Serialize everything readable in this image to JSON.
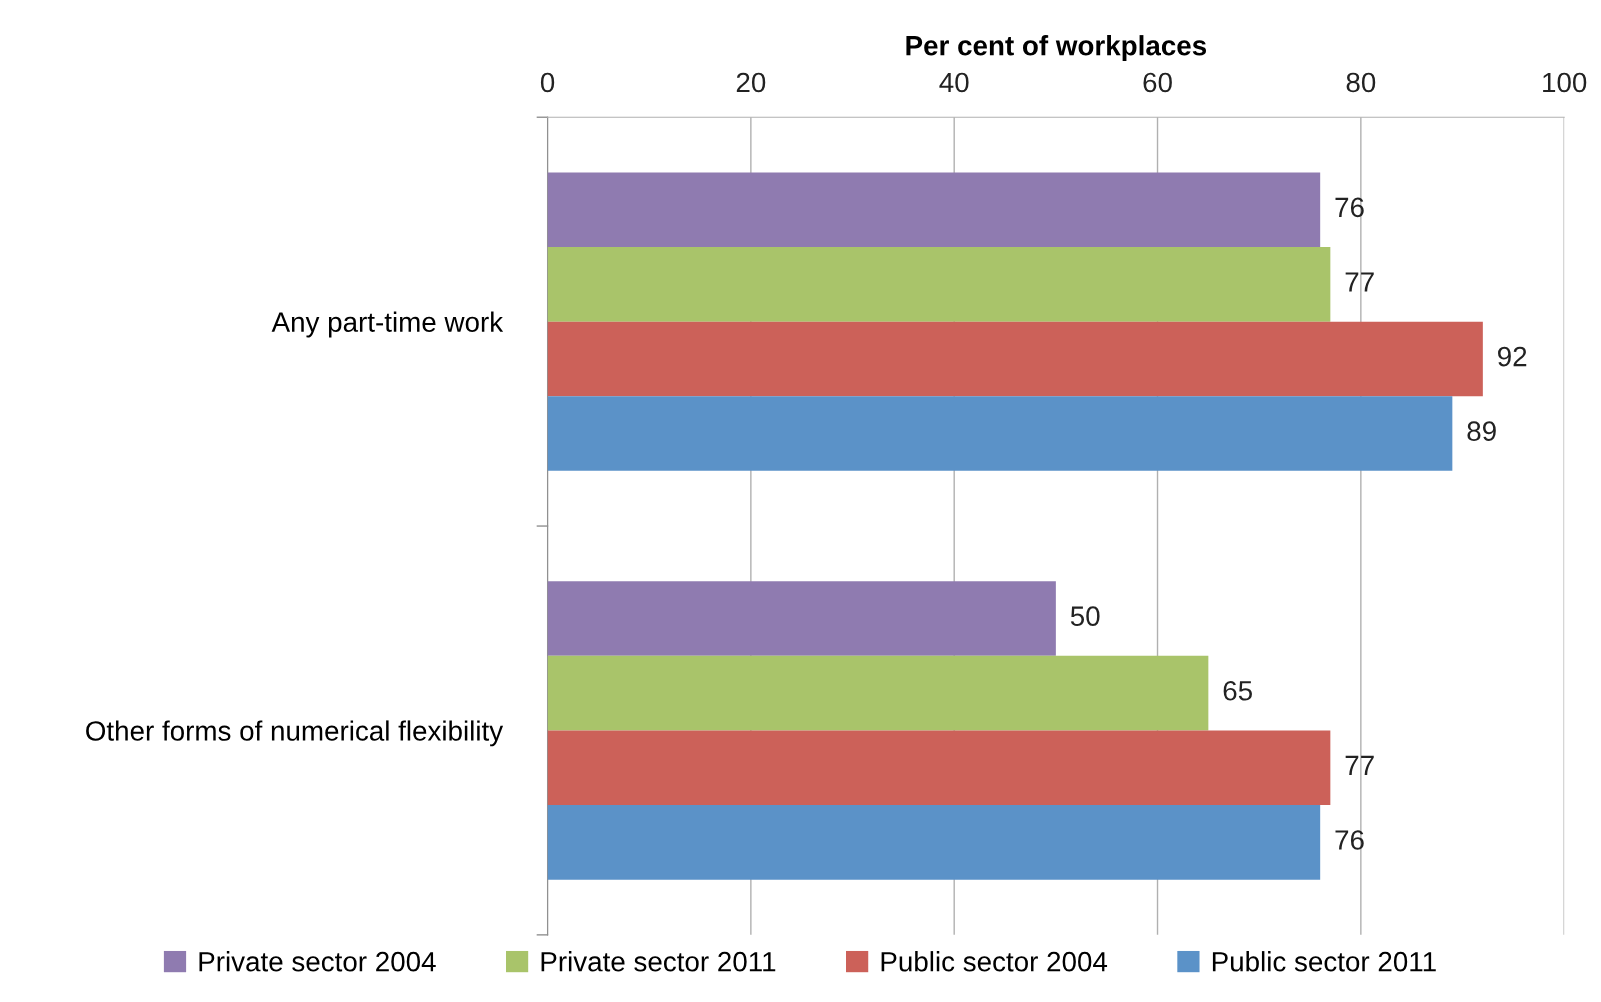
{
  "chart_data": {
    "type": "bar",
    "orientation": "horizontal",
    "xlabel": "Per cent of workplaces",
    "categories": [
      "Any part-time work",
      "Other forms of numerical flexibility"
    ],
    "series": [
      {
        "name": "Private sector 2004",
        "color": "#8f7bb0",
        "values": [
          76,
          50
        ]
      },
      {
        "name": "Private sector 2011",
        "color": "#a9c46a",
        "values": [
          77,
          65
        ]
      },
      {
        "name": "Public sector 2004",
        "color": "#cc6159",
        "values": [
          92,
          77
        ]
      },
      {
        "name": "Public sector 2011",
        "color": "#5b92c8",
        "values": [
          89,
          76
        ]
      }
    ],
    "xlim": [
      0,
      100
    ],
    "xticks": [
      0,
      20,
      40,
      60,
      80,
      100
    ],
    "grid": "x",
    "legend": "bottom",
    "data_labels": true
  }
}
